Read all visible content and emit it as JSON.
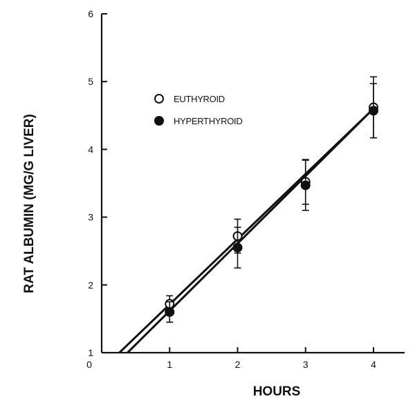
{
  "chart_data": {
    "type": "scatter",
    "xlabel": "HOURS",
    "ylabel": "RAT ALBUMIN (MG/G LIVER)",
    "xlim": [
      0,
      4
    ],
    "ylim": [
      1,
      6
    ],
    "xticks": [
      0,
      1,
      2,
      3,
      4
    ],
    "yticks": [
      1,
      2,
      3,
      4,
      5,
      6
    ],
    "grid": false,
    "legend_position": "upper-left",
    "series": [
      {
        "name": "EUTHYROID",
        "marker": "open-circle",
        "x": [
          1,
          2,
          3,
          4
        ],
        "y": [
          1.72,
          2.72,
          3.52,
          4.62
        ],
        "error": [
          0.12,
          0.25,
          0.33,
          0.45
        ],
        "fit": {
          "x": [
            0.38,
            4.0
          ],
          "y": [
            1.0,
            4.6
          ]
        }
      },
      {
        "name": "HYPERTHYROID",
        "marker": "filled-circle",
        "x": [
          1,
          2,
          3,
          4
        ],
        "y": [
          1.6,
          2.55,
          3.47,
          4.57
        ],
        "error": [
          0.15,
          0.3,
          0.37,
          0.4
        ],
        "fit": {
          "x": [
            0.26,
            4.0
          ],
          "y": [
            1.0,
            4.6
          ]
        }
      }
    ]
  }
}
